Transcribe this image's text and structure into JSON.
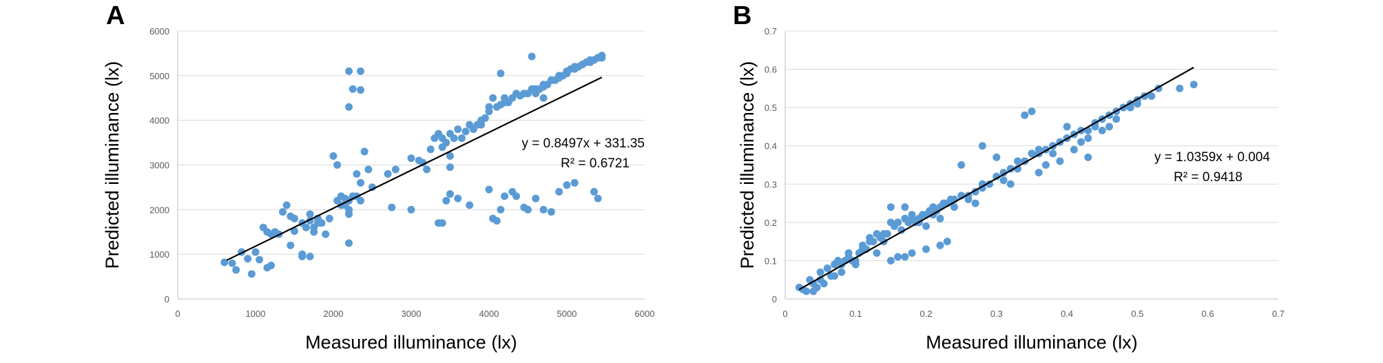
{
  "chart_data": [
    {
      "type": "scatter",
      "panel_label": "A",
      "title": "",
      "xlabel": "Measured  illuminance (lx)",
      "ylabel": "Predicted  illuminance (lx)",
      "xlim": [
        0,
        6000
      ],
      "ylim": [
        0,
        6000
      ],
      "xticks": [
        0,
        1000,
        2000,
        3000,
        4000,
        5000,
        6000
      ],
      "yticks": [
        0,
        1000,
        2000,
        3000,
        4000,
        5000,
        6000
      ],
      "xtick_labels": [
        "0",
        "1000",
        "2000",
        "3000",
        "4000",
        "5000",
        "6000"
      ],
      "ytick_labels": [
        "0",
        "1000",
        "2000",
        "3000",
        "4000",
        "5000",
        "6000"
      ],
      "grid": "horizontal",
      "marker_color": "#5B9BD5",
      "trendline": {
        "slope": 0.8497,
        "intercept": 331.35,
        "x_range": [
          630,
          5450
        ],
        "color": "#000000"
      },
      "equation": "y = 0.8497x + 331.35",
      "r_squared": "R² = 0.6721",
      "x": [
        600,
        700,
        750,
        820,
        900,
        950,
        1000,
        1050,
        1100,
        1150,
        1150,
        1200,
        1250,
        1300,
        1350,
        1400,
        1450,
        1450,
        1500,
        1500,
        1600,
        1600,
        1650,
        1700,
        1700,
        1750,
        1750,
        1800,
        1800,
        1850,
        1900,
        1950,
        2000,
        2050,
        2050,
        2100,
        2100,
        2150,
        2150,
        2200,
        2200,
        2200,
        2250,
        2250,
        2300,
        2300,
        2350,
        2350,
        2400,
        2450,
        2500,
        2700,
        2800,
        3000,
        3100,
        3150,
        3200,
        3250,
        3300,
        3350,
        3400,
        3400,
        3450,
        3500,
        3500,
        3550,
        3600,
        3650,
        3700,
        3750,
        3800,
        3850,
        3900,
        3950,
        4000,
        4000,
        4050,
        4100,
        4150,
        4200,
        4200,
        4250,
        4300,
        4350,
        4400,
        4450,
        4500,
        4550,
        4600,
        4600,
        4650,
        4700,
        4700,
        4750,
        4800,
        4800,
        4850,
        4900,
        4900,
        4950,
        5000,
        5000,
        5050,
        5100,
        5100,
        5150,
        5200,
        5200,
        5250,
        5300,
        5300,
        5350,
        5400,
        5400,
        5450,
        5450,
        2200,
        2250,
        2350,
        2200,
        3400,
        3000,
        3350,
        3450,
        3500,
        3600,
        3750,
        4000,
        4050,
        4100,
        4150,
        4200,
        4300,
        4350,
        4450,
        4500,
        4600,
        4700,
        4800,
        4900,
        5000,
        5100,
        5350,
        5400,
        1200,
        1600,
        1700,
        2200,
        3900,
        2350,
        3500,
        4550,
        4150,
        4700,
        2750
      ],
      "y": [
        820,
        800,
        650,
        1050,
        900,
        560,
        1050,
        880,
        1600,
        1500,
        700,
        1450,
        1500,
        1450,
        1950,
        2100,
        1850,
        1200,
        1520,
        1800,
        1700,
        1000,
        1600,
        1750,
        1900,
        1500,
        1600,
        1700,
        1800,
        1700,
        1450,
        1800,
        3200,
        3000,
        2200,
        2100,
        2300,
        2100,
        2250,
        2000,
        2200,
        1900,
        2300,
        2300,
        2800,
        2300,
        2600,
        2200,
        3300,
        2900,
        2500,
        2800,
        2900,
        3150,
        3100,
        3050,
        2900,
        3350,
        3600,
        3700,
        3400,
        3600,
        3500,
        3700,
        3200,
        3600,
        3800,
        3600,
        3750,
        3900,
        3800,
        3900,
        4000,
        4050,
        4200,
        4300,
        4500,
        4300,
        4350,
        4500,
        4400,
        4400,
        4500,
        4600,
        4550,
        4600,
        4600,
        4700,
        4700,
        4600,
        4700,
        4750,
        4800,
        4800,
        4900,
        4900,
        4900,
        4950,
        5000,
        5000,
        5050,
        5100,
        5150,
        5150,
        5200,
        5200,
        5250,
        5250,
        5300,
        5300,
        5350,
        5350,
        5400,
        5400,
        5400,
        5450,
        4300,
        4700,
        4680,
        5100,
        1700,
        2000,
        1700,
        2200,
        2350,
        2250,
        2100,
        2450,
        1800,
        1750,
        2000,
        2300,
        2400,
        2300,
        2050,
        2000,
        2250,
        2000,
        1950,
        2400,
        2550,
        2600,
        2400,
        2250,
        750,
        950,
        950,
        1250,
        3900,
        5100,
        2950,
        5430,
        5050,
        4500,
        2050
      ]
    },
    {
      "type": "scatter",
      "panel_label": "B",
      "title": "",
      "xlabel": "Measured  illuminance (lx)",
      "ylabel": "Predicted  illuminance (lx)",
      "xlim": [
        0,
        0.7
      ],
      "ylim": [
        0,
        0.7
      ],
      "xticks": [
        0,
        0.1,
        0.2,
        0.3,
        0.4,
        0.5,
        0.6,
        0.7
      ],
      "yticks": [
        0,
        0.1,
        0.2,
        0.3,
        0.4,
        0.5,
        0.6,
        0.7
      ],
      "xtick_labels": [
        "0",
        "0.1",
        "0.2",
        "0.3",
        "0.4",
        "0.5",
        "0.6",
        "0.7"
      ],
      "ytick_labels": [
        "0",
        "0.1",
        "0.2",
        "0.3",
        "0.4",
        "0.5",
        "0.6",
        "0.7"
      ],
      "grid": "horizontal",
      "marker_color": "#5B9BD5",
      "trendline": {
        "slope": 1.0359,
        "intercept": 0.004,
        "x_range": [
          0.02,
          0.58
        ],
        "color": "#000000"
      },
      "equation": "y = 1.0359x + 0.004",
      "r_squared": "R² = 0.9418",
      "x": [
        0.02,
        0.025,
        0.03,
        0.035,
        0.04,
        0.045,
        0.05,
        0.055,
        0.06,
        0.065,
        0.07,
        0.075,
        0.08,
        0.085,
        0.09,
        0.095,
        0.1,
        0.105,
        0.11,
        0.115,
        0.12,
        0.125,
        0.13,
        0.135,
        0.14,
        0.145,
        0.15,
        0.155,
        0.16,
        0.165,
        0.17,
        0.175,
        0.18,
        0.185,
        0.19,
        0.195,
        0.2,
        0.205,
        0.21,
        0.215,
        0.22,
        0.225,
        0.23,
        0.235,
        0.24,
        0.25,
        0.26,
        0.27,
        0.28,
        0.29,
        0.3,
        0.31,
        0.32,
        0.33,
        0.34,
        0.35,
        0.36,
        0.37,
        0.38,
        0.39,
        0.4,
        0.41,
        0.42,
        0.43,
        0.44,
        0.45,
        0.46,
        0.47,
        0.48,
        0.49,
        0.5,
        0.51,
        0.52,
        0.53,
        0.56,
        0.58,
        0.13,
        0.15,
        0.16,
        0.17,
        0.18,
        0.2,
        0.22,
        0.23,
        0.12,
        0.14,
        0.18,
        0.19,
        0.21,
        0.24,
        0.27,
        0.28,
        0.31,
        0.34,
        0.35,
        0.37,
        0.39,
        0.41,
        0.43,
        0.45,
        0.47,
        0.49,
        0.3,
        0.33,
        0.36,
        0.38,
        0.4,
        0.42,
        0.44,
        0.46,
        0.48,
        0.5,
        0.06,
        0.08,
        0.1,
        0.11,
        0.09,
        0.07,
        0.05,
        0.04,
        0.2,
        0.25,
        0.15,
        0.17,
        0.32,
        0.28,
        0.38,
        0.43,
        0.22,
        0.26,
        0.36,
        0.4
      ],
      "y": [
        0.03,
        0.025,
        0.02,
        0.05,
        0.04,
        0.03,
        0.07,
        0.04,
        0.08,
        0.06,
        0.09,
        0.1,
        0.09,
        0.1,
        0.12,
        0.1,
        0.1,
        0.12,
        0.14,
        0.13,
        0.15,
        0.15,
        0.17,
        0.16,
        0.15,
        0.17,
        0.2,
        0.19,
        0.2,
        0.18,
        0.21,
        0.2,
        0.22,
        0.2,
        0.21,
        0.22,
        0.22,
        0.23,
        0.24,
        0.23,
        0.24,
        0.25,
        0.25,
        0.26,
        0.26,
        0.27,
        0.27,
        0.28,
        0.3,
        0.3,
        0.32,
        0.33,
        0.34,
        0.34,
        0.36,
        0.38,
        0.38,
        0.39,
        0.4,
        0.41,
        0.42,
        0.43,
        0.44,
        0.44,
        0.46,
        0.47,
        0.48,
        0.49,
        0.5,
        0.5,
        0.52,
        0.53,
        0.53,
        0.55,
        0.55,
        0.56,
        0.12,
        0.1,
        0.11,
        0.11,
        0.12,
        0.13,
        0.14,
        0.15,
        0.16,
        0.17,
        0.21,
        0.2,
        0.22,
        0.24,
        0.25,
        0.4,
        0.31,
        0.48,
        0.49,
        0.35,
        0.36,
        0.39,
        0.42,
        0.44,
        0.47,
        0.51,
        0.37,
        0.36,
        0.39,
        0.38,
        0.42,
        0.41,
        0.45,
        0.45,
        0.5,
        0.51,
        0.08,
        0.07,
        0.09,
        0.13,
        0.11,
        0.06,
        0.05,
        0.02,
        0.19,
        0.35,
        0.24,
        0.24,
        0.3,
        0.29,
        0.4,
        0.37,
        0.21,
        0.26,
        0.33,
        0.45
      ]
    }
  ]
}
